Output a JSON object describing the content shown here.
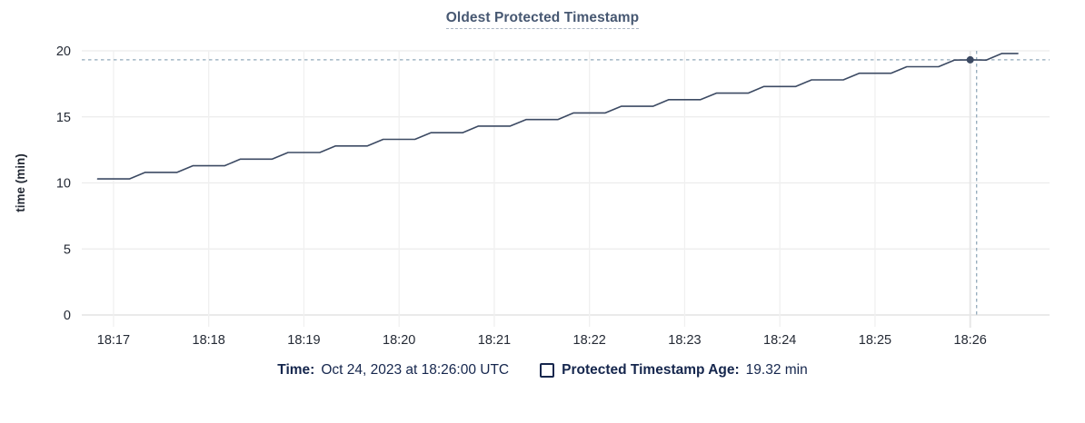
{
  "header": {
    "title": "Oldest Protected Timestamp"
  },
  "colors": {
    "title": "#475872",
    "text": "#242a35",
    "legend_text": "#15264d",
    "series_line": "#3c4a63",
    "hover_dot": "#3c4a63",
    "crosshair_dash": "#92a9ba",
    "hover_guide": "#e6e6e6",
    "grid": "#ececec",
    "grid_vertical": "#f0f0f0",
    "baseline": "#dedede"
  },
  "chart_data": {
    "type": "line",
    "title": "Oldest Protected Timestamp",
    "xlabel": "",
    "ylabel": "time (min)",
    "ylim": [
      0,
      20
    ],
    "yticks": [
      0,
      5,
      10,
      15,
      20
    ],
    "xticks": [
      "18:17",
      "18:18",
      "18:19",
      "18:20",
      "18:21",
      "18:22",
      "18:23",
      "18:24",
      "18:25",
      "18:26"
    ],
    "x_domain": [
      "18:16:40",
      "18:26:50"
    ],
    "grid": "on",
    "legend_position": "bottom",
    "series": [
      {
        "name": "Protected Timestamp Age",
        "x": [
          "18:16:50",
          "18:17:00",
          "18:17:10",
          "18:17:20",
          "18:17:30",
          "18:17:40",
          "18:17:50",
          "18:18:00",
          "18:18:10",
          "18:18:20",
          "18:18:30",
          "18:18:40",
          "18:18:50",
          "18:19:00",
          "18:19:10",
          "18:19:20",
          "18:19:30",
          "18:19:40",
          "18:19:50",
          "18:20:00",
          "18:20:10",
          "18:20:20",
          "18:20:30",
          "18:20:40",
          "18:20:50",
          "18:21:00",
          "18:21:10",
          "18:21:20",
          "18:21:30",
          "18:21:40",
          "18:21:50",
          "18:22:00",
          "18:22:10",
          "18:22:20",
          "18:22:30",
          "18:22:40",
          "18:22:50",
          "18:23:00",
          "18:23:10",
          "18:23:20",
          "18:23:30",
          "18:23:40",
          "18:23:50",
          "18:24:00",
          "18:24:10",
          "18:24:20",
          "18:24:30",
          "18:24:40",
          "18:24:50",
          "18:25:00",
          "18:25:10",
          "18:25:20",
          "18:25:30",
          "18:25:40",
          "18:25:50",
          "18:26:00",
          "18:26:10",
          "18:26:20",
          "18:26:30"
        ],
        "values": [
          10.3,
          10.3,
          10.3,
          10.8,
          10.8,
          10.8,
          11.3,
          11.3,
          11.3,
          11.8,
          11.8,
          11.8,
          12.3,
          12.3,
          12.3,
          12.8,
          12.8,
          12.8,
          13.3,
          13.3,
          13.3,
          13.8,
          13.8,
          13.8,
          14.3,
          14.3,
          14.3,
          14.8,
          14.8,
          14.8,
          15.3,
          15.3,
          15.3,
          15.8,
          15.8,
          15.8,
          16.3,
          16.3,
          16.3,
          16.8,
          16.8,
          16.8,
          17.3,
          17.3,
          17.3,
          17.8,
          17.8,
          17.8,
          18.3,
          18.3,
          18.3,
          18.8,
          18.8,
          18.8,
          19.3,
          19.32,
          19.3,
          19.8,
          19.8
        ]
      }
    ],
    "hover": {
      "time": "18:26:00",
      "value": 19.32
    }
  },
  "legend": {
    "time_label": "Time:",
    "time_value": "Oct 24, 2023 at 18:26:00 UTC",
    "series_label": "Protected Timestamp Age:",
    "series_value": "19.32 min"
  }
}
